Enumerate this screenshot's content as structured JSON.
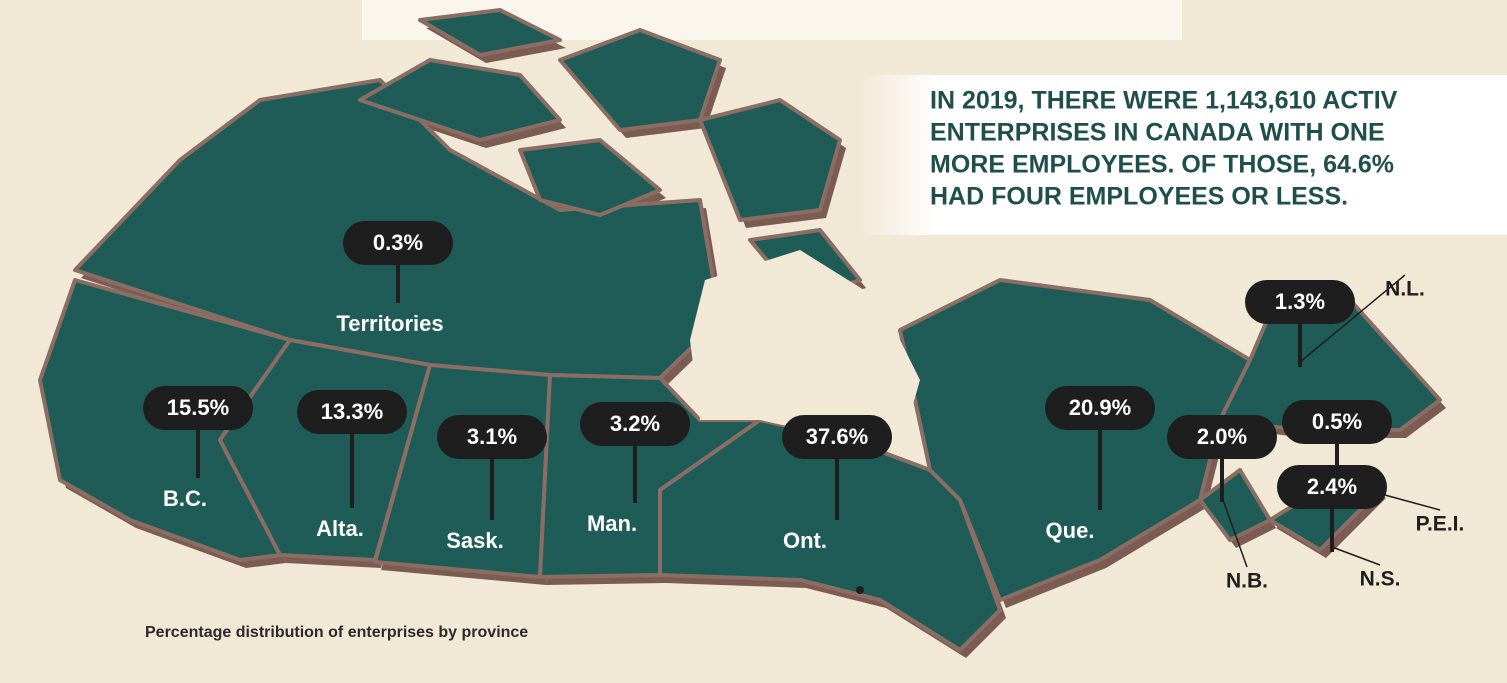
{
  "headline": {
    "lines": [
      "IN 2019, THERE WERE 1,143,610 ACTIV",
      "ENTERPRISES IN CANADA WITH ONE",
      "MORE EMPLOYEES. OF THOSE, 64.6%",
      "HAD FOUR EMPLOYEES OR LESS."
    ]
  },
  "regions": [
    {
      "name": "Territories",
      "share": "0.3%"
    },
    {
      "name": "B.C.",
      "share": "15.5%"
    },
    {
      "name": "Alta.",
      "share": "13.3%"
    },
    {
      "name": "Sask.",
      "share": "3.1%"
    },
    {
      "name": "Man.",
      "share": "3.2%"
    },
    {
      "name": "Ont.",
      "share": "37.6%"
    },
    {
      "name": "Que.",
      "share": "20.9%"
    },
    {
      "name": "N.L.",
      "share": "1.3%"
    },
    {
      "name": "N.B.",
      "share": "2.0%"
    },
    {
      "name": "P.E.I.",
      "share": "0.5%"
    },
    {
      "name": "N.S.",
      "share": "2.4%"
    }
  ],
  "footnote": "Percentage distribution of enterprises by province"
}
